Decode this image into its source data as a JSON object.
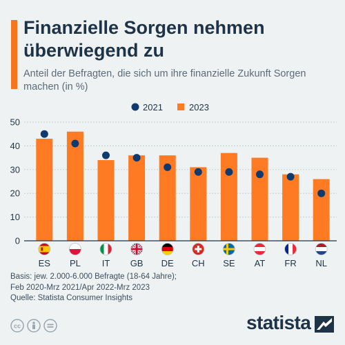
{
  "title": "Finanzielle Sorgen nehmen überwiegend zu",
  "subtitle": "Anteil der Befragten, die sich um ihre finanzielle Zukunft Sorgen machen (in %)",
  "colors": {
    "accent": "#f5761f",
    "bar": "#fe7a23",
    "dot": "#0f3a70",
    "text": "#1f3347"
  },
  "chart_data": {
    "type": "bar",
    "categories": [
      "ES",
      "PL",
      "IT",
      "GB",
      "DE",
      "CH",
      "SE",
      "AT",
      "FR",
      "NL"
    ],
    "flags": [
      "spain-flag-icon",
      "poland-flag-icon",
      "italy-flag-icon",
      "uk-flag-icon",
      "germany-flag-icon",
      "switzerland-flag-icon",
      "sweden-flag-icon",
      "austria-flag-icon",
      "france-flag-icon",
      "netherlands-flag-icon"
    ],
    "series": [
      {
        "name": "2021",
        "mark": "dot",
        "values": [
          45,
          41,
          36,
          35,
          31,
          29,
          29,
          28,
          27,
          20
        ]
      },
      {
        "name": "2023",
        "mark": "bar",
        "values": [
          43,
          46,
          34,
          36,
          36,
          31,
          37,
          35,
          28,
          26
        ]
      }
    ],
    "ylim": [
      0,
      50
    ],
    "yticks": [
      0,
      10,
      20,
      30,
      40,
      50
    ],
    "legend_position": "top-center",
    "grid": true
  },
  "footer": {
    "lines": [
      "Basis: jew. 2.000-6.000  Befragte (18-64 Jahre);",
      "Feb 2020-Mrz 2021/Apr 2022-Mrz 2023",
      "Quelle: Statista Consumer Insights"
    ]
  },
  "license_icons": [
    "cc-icon",
    "by-icon",
    "nd-icon"
  ],
  "brand": {
    "name": "statista"
  }
}
